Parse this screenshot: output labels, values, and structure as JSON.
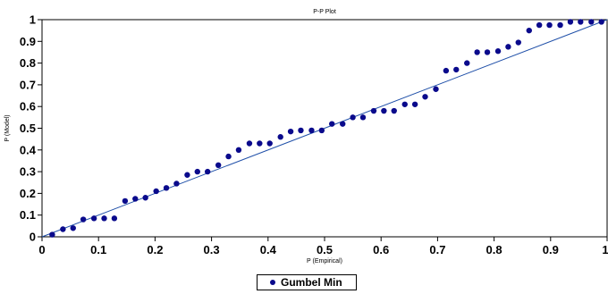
{
  "chart_data": {
    "type": "scatter",
    "title": "P-P Plot",
    "xlabel": "P (Empirical)",
    "ylabel": "P (Model)",
    "xlim": [
      0,
      1
    ],
    "ylim": [
      0,
      1
    ],
    "xticks": [
      "0",
      "0.1",
      "0.2",
      "0.3",
      "0.4",
      "0.5",
      "0.6",
      "0.7",
      "0.8",
      "0.9",
      "1"
    ],
    "yticks": [
      "0",
      "0.1",
      "0.2",
      "0.3",
      "0.4",
      "0.5",
      "0.6",
      "0.7",
      "0.8",
      "0.9",
      "1"
    ],
    "grid": false,
    "legend_position": "bottom-center",
    "series": [
      {
        "name": "Gumbel Min",
        "marker_color": "#0a0a8c",
        "x": [
          0.018,
          0.037,
          0.055,
          0.073,
          0.092,
          0.11,
          0.128,
          0.147,
          0.165,
          0.183,
          0.202,
          0.22,
          0.238,
          0.257,
          0.275,
          0.293,
          0.312,
          0.33,
          0.348,
          0.367,
          0.385,
          0.403,
          0.422,
          0.44,
          0.458,
          0.477,
          0.495,
          0.513,
          0.532,
          0.55,
          0.568,
          0.587,
          0.605,
          0.623,
          0.642,
          0.66,
          0.678,
          0.697,
          0.715,
          0.733,
          0.752,
          0.77,
          0.788,
          0.807,
          0.825,
          0.843,
          0.862,
          0.88,
          0.898,
          0.917,
          0.935,
          0.953,
          0.972,
          0.99
        ],
        "y": [
          0.01,
          0.035,
          0.04,
          0.08,
          0.085,
          0.085,
          0.085,
          0.165,
          0.175,
          0.18,
          0.21,
          0.225,
          0.245,
          0.285,
          0.3,
          0.3,
          0.33,
          0.37,
          0.4,
          0.43,
          0.43,
          0.43,
          0.46,
          0.485,
          0.49,
          0.49,
          0.49,
          0.52,
          0.52,
          0.55,
          0.55,
          0.58,
          0.58,
          0.58,
          0.61,
          0.61,
          0.645,
          0.68,
          0.765,
          0.77,
          0.8,
          0.85,
          0.85,
          0.855,
          0.875,
          0.895,
          0.95,
          0.975,
          0.975,
          0.975,
          0.99,
          0.99,
          0.99,
          0.99
        ]
      }
    ],
    "reference_line": {
      "x": [
        0,
        1
      ],
      "y": [
        0,
        1
      ],
      "color": "#1f4fa8"
    }
  },
  "legend": {
    "label": "Gumbel Min"
  }
}
